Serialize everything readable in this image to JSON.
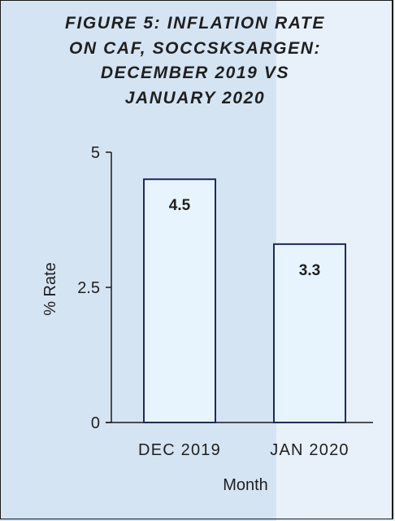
{
  "chart_data": {
    "type": "bar",
    "title": "FIGURE 5: INFLATION RATE ON CAF, SOCCSKSARGEN: DECEMBER 2019 VS JANUARY 2020",
    "title_lines": [
      "FIGURE 5: INFLATION RATE",
      "ON CAF, SOCCSKSARGEN:",
      "DECEMBER 2019 VS",
      "JANUARY 2020"
    ],
    "categories": [
      "DEC 2019",
      "JAN 2020"
    ],
    "values": [
      4.5,
      3.3
    ],
    "data_labels": [
      "4.5",
      "3.3"
    ],
    "xlabel": "Month",
    "ylabel": "% Rate",
    "ylim": [
      0,
      5
    ],
    "yticks": [
      "0",
      "2.5",
      "5"
    ],
    "grid": false,
    "legend": "none",
    "colors": {
      "bar_fill": "#e7f4fd",
      "bar_stroke": "#1f2a5a",
      "background_left": "#d5e4f3",
      "background_right": "#e8f1fa"
    }
  }
}
